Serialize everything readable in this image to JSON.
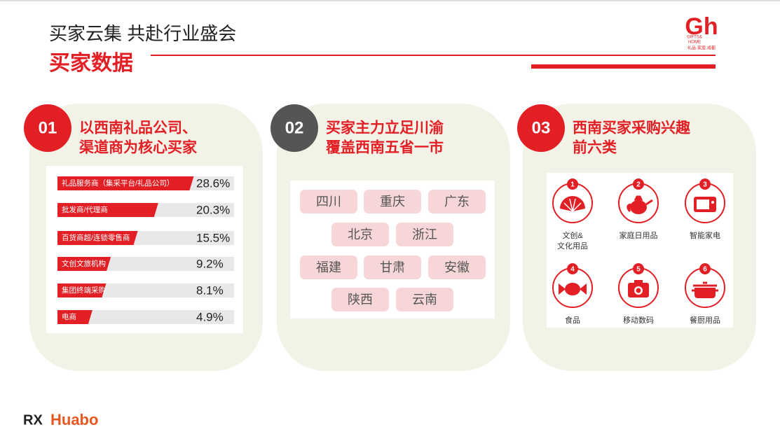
{
  "header": {
    "title": "买家云集 共赴行业盛会",
    "subtitle": "买家数据"
  },
  "logo": {
    "mark": "Gh",
    "text": [
      "GIFTS&",
      "HOME"
    ],
    "tagline": "礼品·家居·成都"
  },
  "panels": [
    {
      "number": "01",
      "heading": [
        "以西南礼品公司、",
        "渠道商为核心买家"
      ],
      "rows": [
        {
          "label": "礼品服务商（集采平台/礼品公司）",
          "value": 28.6,
          "value_label": "28.6%"
        },
        {
          "label": "批发商/代理商",
          "value": 20.3,
          "value_label": "20.3%"
        },
        {
          "label": "百货商超/连锁零售商",
          "value": 15.5,
          "value_label": "15.5%"
        },
        {
          "label": "文创文旅机构",
          "value": 9.2,
          "value_label": "9.2%"
        },
        {
          "label": "集团终端采购",
          "value": 8.1,
          "value_label": "8.1%"
        },
        {
          "label": "电商",
          "value": 4.9,
          "value_label": "4.9%"
        }
      ]
    },
    {
      "number": "02",
      "heading": [
        "买家主力立足川渝",
        "覆盖西南五省一市"
      ],
      "regions": [
        "四川",
        "重庆",
        "广东",
        "北京",
        "浙江",
        "福建",
        "甘肃",
        "安徽",
        "陕西",
        "云南"
      ]
    },
    {
      "number": "03",
      "heading": [
        "西南买家采购兴趣",
        "前六类"
      ],
      "categories": [
        {
          "rank": "1",
          "label": [
            "文创&",
            "文化用品"
          ]
        },
        {
          "rank": "2",
          "label": [
            "家庭日用品"
          ]
        },
        {
          "rank": "3",
          "label": [
            "智能家电"
          ]
        },
        {
          "rank": "4",
          "label": [
            "食品"
          ]
        },
        {
          "rank": "5",
          "label": [
            "移动数码"
          ]
        },
        {
          "rank": "6",
          "label": [
            "餐厨用品"
          ]
        }
      ]
    }
  ],
  "footer": {
    "brand": "RX",
    "name": "Huabo"
  }
}
